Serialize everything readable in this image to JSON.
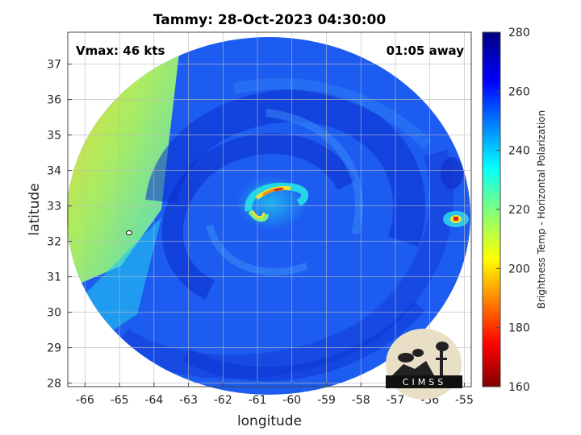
{
  "title": "Tammy: 28-Oct-2023 04:30:00",
  "vmax_label": "Vmax: 46 kts",
  "time_away_label": "01:05 away",
  "xlabel": "longitude",
  "ylabel": "latitude",
  "x_ticks": [
    "-66",
    "-65",
    "-64",
    "-63",
    "-62",
    "-61",
    "-60",
    "-59",
    "-58",
    "-57",
    "-56",
    "-55"
  ],
  "y_ticks": [
    "37",
    "36",
    "35",
    "34",
    "33",
    "32",
    "31",
    "30",
    "29",
    "28"
  ],
  "colorbar": {
    "label": "Brightness Temp - Horizontal Polarization",
    "ticks": [
      "280",
      "260",
      "240",
      "220",
      "200",
      "180",
      "160"
    ],
    "min": 160,
    "max": 280,
    "colormap": "jet"
  },
  "logo_text": "CIMSS",
  "map": {
    "lon_range": [
      -66.5,
      -54.8
    ],
    "lat_range": [
      27.9,
      37.9
    ],
    "storm_center": {
      "lon": -60.7,
      "lat": 33.2
    },
    "colors": {
      "deep_blue": "#0b2fcf",
      "blue": "#1d5cf0",
      "light_blue": "#1ea8f5",
      "cyan": "#2ed8ea",
      "yellow": "#f2e32a",
      "orange": "#f08a1c",
      "red": "#d9201a"
    }
  }
}
